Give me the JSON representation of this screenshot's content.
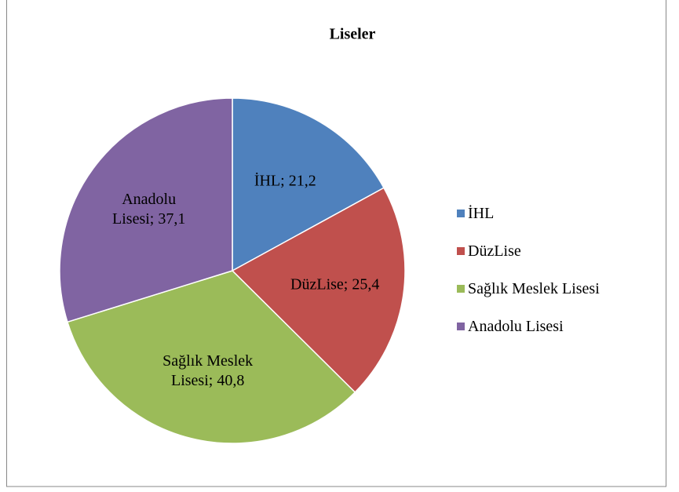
{
  "chart_data": {
    "type": "pie",
    "title": "Liseler",
    "categories": [
      "İHL",
      "DüzLise",
      "Sağlık Meslek Lisesi",
      "Anadolu Lisesi"
    ],
    "values": [
      21.2,
      25.4,
      40.8,
      37.1
    ],
    "value_labels": [
      "İHL; 21,2",
      "DüzLise; 25,4",
      "Sağlık Meslek Lisesi; 40,8",
      "Anadolu Lisesi; 37,1"
    ],
    "colors": [
      "#4f81bd",
      "#c0504d",
      "#9bbb59",
      "#8064a2"
    ],
    "legend": "right"
  }
}
